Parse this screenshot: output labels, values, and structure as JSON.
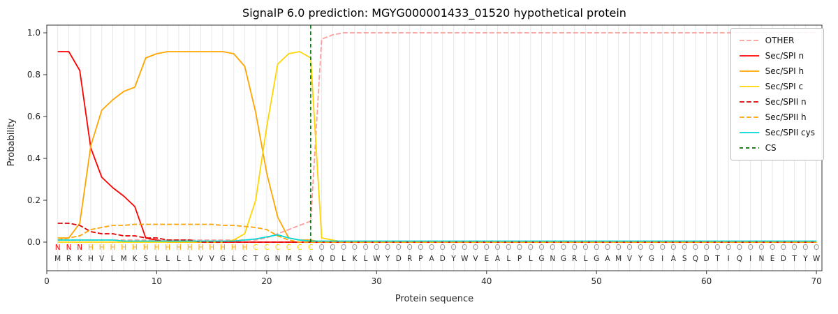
{
  "title": "SignalP 6.0 prediction: MGYG000001433_01520 hypothetical protein",
  "xlabel": "Protein sequence",
  "ylabel": "Probability",
  "chart_data": {
    "type": "line",
    "x_range": [
      0,
      70.5
    ],
    "y_ticks": [
      "0.0",
      "0.2",
      "0.4",
      "0.6",
      "0.8",
      "1.0"
    ],
    "x_ticks": [
      0,
      10,
      20,
      30,
      40,
      50,
      60,
      70
    ],
    "grid": "vertical-per-residue",
    "grid_color": "#e7e7e7",
    "legend_position": "upper right",
    "cs_label": "CS",
    "cs_position": 24,
    "cs_color": "#006f00",
    "sequence": "MRKHVLMKSLLLLVVGLCTGNMSAQDLKLWYDRPADYWVEALPLGNGRLGAMVYGIASQDTIQINEDTYW",
    "region_labels": "NNNHHHHHHHHHHHHHHHCCCCCCOOOOOOOOOOOOOOOOOOOOOOOOOOOOOOOOOOOOOOOOOOOOOO",
    "region_colors": {
      "N": "#ff0000",
      "H": "#ffa500",
      "C": "#ffd500",
      "O": "#9a9a9a"
    },
    "series": [
      {
        "name": "OTHER",
        "color": "#ff9d9b",
        "dash": "7,3",
        "values": [
          0.01,
          0.01,
          0.01,
          0.01,
          0.01,
          0.01,
          0.01,
          0.01,
          0.01,
          0.01,
          0.01,
          0.01,
          0.01,
          0.01,
          0.01,
          0.01,
          0.01,
          0.01,
          0.01,
          0.02,
          0.04,
          0.06,
          0.08,
          0.1,
          0.97,
          0.99,
          1.0,
          1.0,
          1.0,
          1.0,
          1.0,
          1.0,
          1.0,
          1.0,
          1.0,
          1.0,
          1.0,
          1.0,
          1.0,
          1.0,
          1.0,
          1.0,
          1.0,
          1.0,
          1.0,
          1.0,
          1.0,
          1.0,
          1.0,
          1.0,
          1.0,
          1.0,
          1.0,
          1.0,
          1.0,
          1.0,
          1.0,
          1.0,
          1.0,
          1.0,
          1.0,
          1.0,
          1.0,
          1.0,
          1.0,
          1.0,
          1.0,
          1.0,
          1.0,
          1.0
        ]
      },
      {
        "name": "Sec/SPI n",
        "color": "#ff0000",
        "dash": null,
        "values": [
          0.91,
          0.91,
          0.82,
          0.45,
          0.31,
          0.26,
          0.22,
          0.17,
          0.02,
          0.01,
          0,
          0,
          0,
          0,
          0,
          0,
          0,
          0,
          0,
          0,
          0,
          0,
          0,
          0,
          0,
          0,
          0,
          0,
          0,
          0,
          0,
          0,
          0,
          0,
          0,
          0,
          0,
          0,
          0,
          0,
          0,
          0,
          0,
          0,
          0,
          0,
          0,
          0,
          0,
          0,
          0,
          0,
          0,
          0,
          0,
          0,
          0,
          0,
          0,
          0,
          0,
          0,
          0,
          0,
          0,
          0,
          0,
          0,
          0,
          0
        ]
      },
      {
        "name": "Sec/SPI h",
        "color": "#ffa500",
        "dash": null,
        "values": [
          0.02,
          0.02,
          0.09,
          0.46,
          0.63,
          0.68,
          0.72,
          0.74,
          0.88,
          0.9,
          0.91,
          0.91,
          0.91,
          0.91,
          0.91,
          0.91,
          0.9,
          0.84,
          0.62,
          0.33,
          0.12,
          0.02,
          0.01,
          0.01,
          0,
          0,
          0,
          0,
          0,
          0,
          0,
          0,
          0,
          0,
          0,
          0,
          0,
          0,
          0,
          0,
          0,
          0,
          0,
          0,
          0,
          0,
          0,
          0,
          0,
          0,
          0,
          0,
          0,
          0,
          0,
          0,
          0,
          0,
          0,
          0,
          0,
          0,
          0,
          0,
          0,
          0,
          0,
          0,
          0,
          0
        ]
      },
      {
        "name": "Sec/SPI c",
        "color": "#ffd500",
        "dash": null,
        "values": [
          0,
          0,
          0,
          0,
          0,
          0,
          0,
          0,
          0,
          0,
          0,
          0,
          0,
          0,
          0,
          0,
          0.01,
          0.04,
          0.2,
          0.55,
          0.85,
          0.9,
          0.91,
          0.88,
          0.02,
          0.01,
          0,
          0,
          0,
          0,
          0,
          0,
          0,
          0,
          0,
          0,
          0,
          0,
          0,
          0,
          0,
          0,
          0,
          0,
          0,
          0,
          0,
          0,
          0,
          0,
          0,
          0,
          0,
          0,
          0,
          0,
          0,
          0,
          0,
          0,
          0,
          0,
          0,
          0,
          0,
          0,
          0,
          0,
          0,
          0
        ]
      },
      {
        "name": "Sec/SPII n",
        "color": "#e00000",
        "dash": "7,3",
        "values": [
          0.09,
          0.09,
          0.08,
          0.05,
          0.04,
          0.04,
          0.03,
          0.03,
          0.02,
          0.02,
          0.01,
          0.01,
          0.01,
          0,
          0,
          0,
          0,
          0,
          0,
          0,
          0,
          0,
          0,
          0,
          0,
          0,
          0,
          0,
          0,
          0,
          0,
          0,
          0,
          0,
          0,
          0,
          0,
          0,
          0,
          0,
          0,
          0,
          0,
          0,
          0,
          0,
          0,
          0,
          0,
          0,
          0,
          0,
          0,
          0,
          0,
          0,
          0,
          0,
          0,
          0,
          0,
          0,
          0,
          0,
          0,
          0,
          0,
          0,
          0,
          0
        ]
      },
      {
        "name": "Sec/SPII h",
        "color": "#ffa500",
        "dash": "7,3",
        "values": [
          0.01,
          0.02,
          0.03,
          0.06,
          0.07,
          0.08,
          0.08,
          0.085,
          0.085,
          0.085,
          0.085,
          0.085,
          0.085,
          0.085,
          0.085,
          0.08,
          0.08,
          0.075,
          0.07,
          0.06,
          0.03,
          0.01,
          0,
          0,
          0,
          0,
          0,
          0,
          0,
          0,
          0,
          0,
          0,
          0,
          0,
          0,
          0,
          0,
          0,
          0,
          0,
          0,
          0,
          0,
          0,
          0,
          0,
          0,
          0,
          0,
          0,
          0,
          0,
          0,
          0,
          0,
          0,
          0,
          0,
          0,
          0,
          0,
          0,
          0,
          0,
          0,
          0,
          0,
          0,
          0
        ]
      },
      {
        "name": "Sec/SPII cys",
        "color": "#00d8d8",
        "dash": null,
        "values": [
          0.01,
          0.01,
          0.01,
          0.01,
          0.01,
          0.01,
          0.005,
          0.005,
          0.005,
          0.005,
          0.005,
          0.005,
          0.005,
          0.005,
          0.005,
          0.005,
          0.005,
          0.01,
          0.015,
          0.025,
          0.035,
          0.02,
          0.01,
          0.005,
          0.005,
          0.005,
          0.005,
          0.005,
          0.005,
          0.005,
          0.005,
          0.005,
          0.005,
          0.005,
          0.005,
          0.005,
          0.005,
          0.005,
          0.005,
          0.005,
          0.005,
          0.005,
          0.005,
          0.005,
          0.005,
          0.005,
          0.005,
          0.005,
          0.005,
          0.005,
          0.005,
          0.005,
          0.005,
          0.005,
          0.005,
          0.005,
          0.005,
          0.005,
          0.005,
          0.005,
          0.005,
          0.005,
          0.005,
          0.005,
          0.005,
          0.005,
          0.005,
          0.005,
          0.005,
          0.005
        ]
      }
    ]
  }
}
